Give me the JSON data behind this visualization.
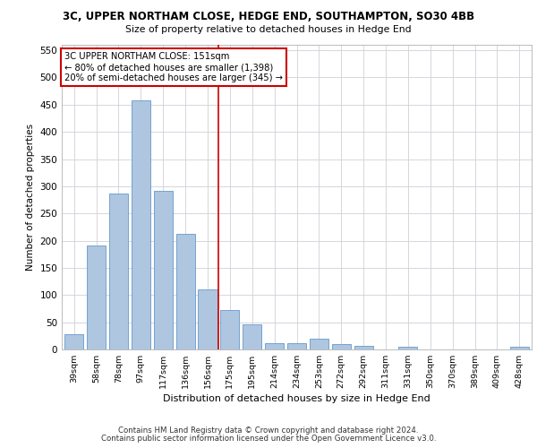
{
  "title1": "3C, UPPER NORTHAM CLOSE, HEDGE END, SOUTHAMPTON, SO30 4BB",
  "title2": "Size of property relative to detached houses in Hedge End",
  "xlabel": "Distribution of detached houses by size in Hedge End",
  "ylabel": "Number of detached properties",
  "categories": [
    "39sqm",
    "58sqm",
    "78sqm",
    "97sqm",
    "117sqm",
    "136sqm",
    "156sqm",
    "175sqm",
    "195sqm",
    "214sqm",
    "234sqm",
    "253sqm",
    "272sqm",
    "292sqm",
    "311sqm",
    "331sqm",
    "350sqm",
    "370sqm",
    "389sqm",
    "409sqm",
    "428sqm"
  ],
  "values": [
    28,
    191,
    286,
    458,
    291,
    213,
    110,
    72,
    46,
    12,
    11,
    20,
    10,
    6,
    0,
    5,
    0,
    0,
    0,
    0,
    5
  ],
  "bar_color": "#aec6e0",
  "bar_edge_color": "#6699cc",
  "vline_x": 6.5,
  "vline_color": "#cc0000",
  "annotation_text": "3C UPPER NORTHAM CLOSE: 151sqm\n← 80% of detached houses are smaller (1,398)\n20% of semi-detached houses are larger (345) →",
  "annotation_box_color": "#ffffff",
  "annotation_box_edge_color": "#cc0000",
  "ylim": [
    0,
    560
  ],
  "yticks": [
    0,
    50,
    100,
    150,
    200,
    250,
    300,
    350,
    400,
    450,
    500,
    550
  ],
  "footer1": "Contains HM Land Registry data © Crown copyright and database right 2024.",
  "footer2": "Contains public sector information licensed under the Open Government Licence v3.0.",
  "bg_color": "#ffffff",
  "grid_color": "#d0d0d8"
}
